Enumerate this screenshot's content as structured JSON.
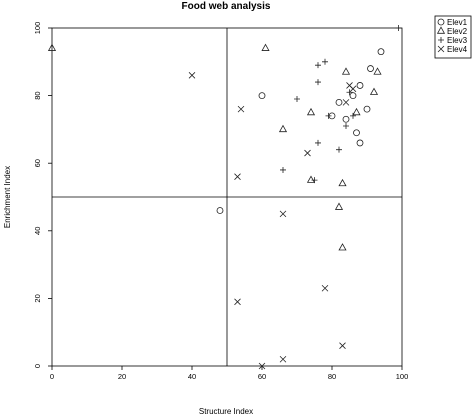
{
  "chart_data": {
    "type": "scatter",
    "title": "Food web analysis",
    "xlabel": "Structure Index",
    "ylabel": "Enrichment Index",
    "xlim": [
      0,
      100
    ],
    "ylim": [
      0,
      100
    ],
    "xticks": [
      0,
      20,
      40,
      60,
      80,
      100
    ],
    "yticks": [
      0,
      20,
      40,
      60,
      80,
      100
    ],
    "grid": false,
    "reference_lines": {
      "x": 50,
      "y": 50
    },
    "legend_position": "top-right",
    "series": [
      {
        "name": "Elev1",
        "marker": "circle",
        "points": [
          [
            48,
            46
          ],
          [
            60,
            80
          ],
          [
            80,
            74
          ],
          [
            82,
            78
          ],
          [
            84,
            73
          ],
          [
            86,
            80
          ],
          [
            87,
            69
          ],
          [
            88,
            83
          ],
          [
            88,
            66
          ],
          [
            90,
            76
          ],
          [
            91,
            88
          ],
          [
            94,
            93
          ]
        ]
      },
      {
        "name": "Elev2",
        "marker": "triangle",
        "points": [
          [
            0,
            94
          ],
          [
            61,
            94
          ],
          [
            66,
            70
          ],
          [
            74,
            75
          ],
          [
            74,
            55
          ],
          [
            82,
            47
          ],
          [
            83,
            54
          ],
          [
            83,
            35
          ],
          [
            84,
            87
          ],
          [
            87,
            75
          ],
          [
            92,
            81
          ],
          [
            93,
            87
          ]
        ]
      },
      {
        "name": "Elev3",
        "marker": "plus",
        "points": [
          [
            66,
            58
          ],
          [
            70,
            79
          ],
          [
            75,
            55
          ],
          [
            76,
            84
          ],
          [
            76,
            66
          ],
          [
            76,
            89
          ],
          [
            78,
            90
          ],
          [
            79,
            74
          ],
          [
            82,
            64
          ],
          [
            84,
            71
          ],
          [
            85,
            81
          ],
          [
            86,
            74
          ],
          [
            99,
            100
          ]
        ]
      },
      {
        "name": "Elev4",
        "marker": "cross",
        "points": [
          [
            40,
            86
          ],
          [
            53,
            56
          ],
          [
            53,
            19
          ],
          [
            54,
            76
          ],
          [
            60,
            0
          ],
          [
            66,
            45
          ],
          [
            66,
            2
          ],
          [
            73,
            63
          ],
          [
            78,
            23
          ],
          [
            83,
            6
          ],
          [
            84,
            78
          ],
          [
            85,
            83
          ],
          [
            86,
            82
          ]
        ]
      }
    ]
  }
}
